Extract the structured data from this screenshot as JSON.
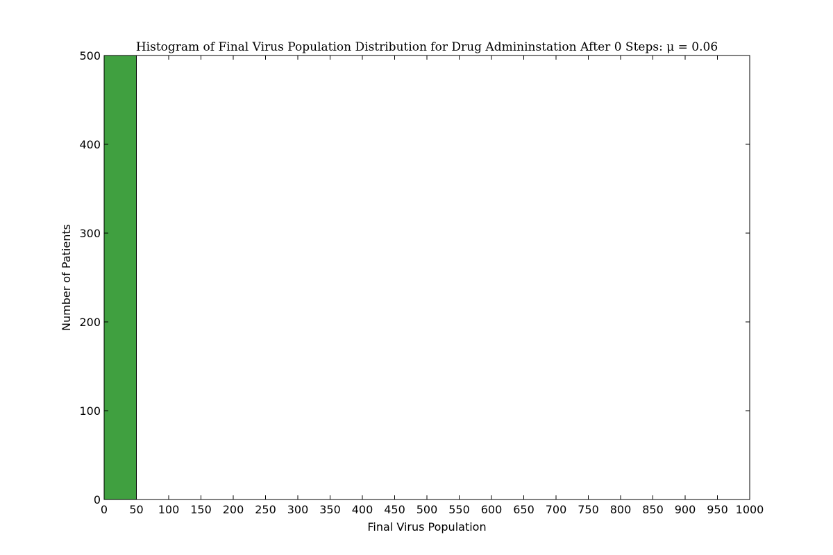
{
  "chart_data": {
    "type": "bar",
    "title": "Histogram of Final Virus Population Distribution for Drug Admininstation After 0 Steps: μ = 0.06",
    "xlabel": "Final Virus Population",
    "ylabel": "Number of Patients",
    "xlim": [
      0,
      1000
    ],
    "ylim": [
      0,
      500
    ],
    "xticks": [
      "0",
      "50",
      "100",
      "150",
      "200",
      "250",
      "300",
      "350",
      "400",
      "450",
      "500",
      "550",
      "600",
      "650",
      "700",
      "750",
      "800",
      "850",
      "900",
      "950",
      "1000"
    ],
    "yticks": [
      "0",
      "100",
      "200",
      "300",
      "400",
      "500"
    ],
    "bins": [
      {
        "x0": 0,
        "x1": 50,
        "count": 500
      }
    ],
    "bar_color": "#40a040",
    "grid": false
  }
}
